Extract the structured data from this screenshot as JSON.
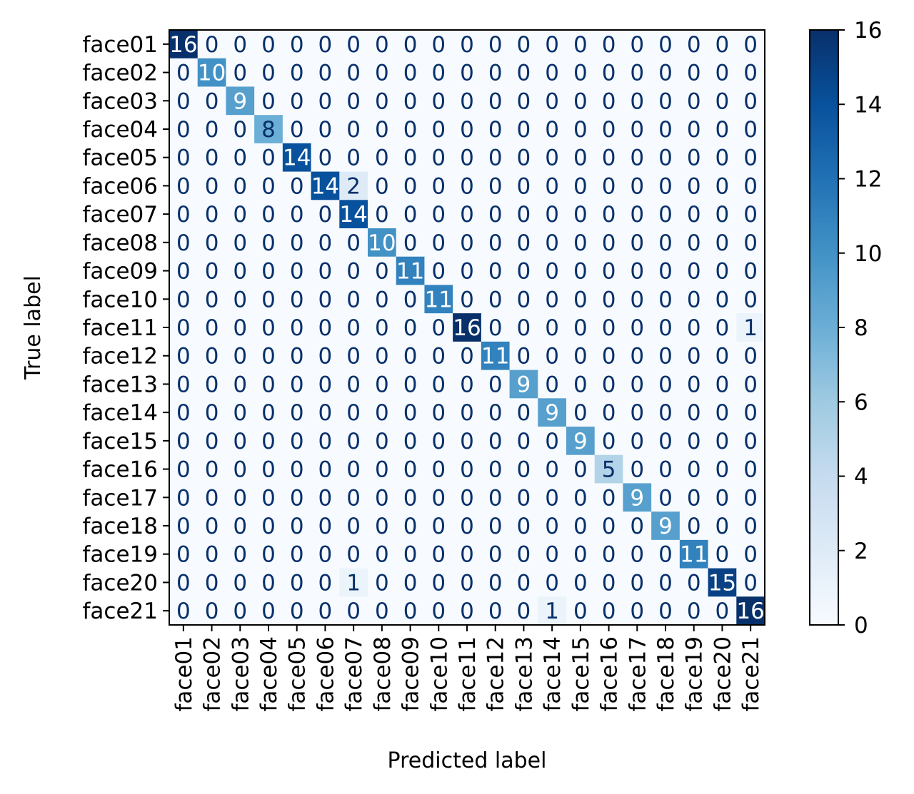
{
  "chart_data": {
    "type": "heatmap",
    "title": "",
    "xlabel": "Predicted label",
    "ylabel": "True label",
    "colormap": "Blues",
    "color_low": "#f7fbff",
    "color_high": "#08306b",
    "text_color_light": "#ffffff",
    "text_color_dark": "#08306b",
    "x_categories": [
      "face01",
      "face02",
      "face03",
      "face04",
      "face05",
      "face06",
      "face07",
      "face08",
      "face09",
      "face10",
      "face11",
      "face12",
      "face13",
      "face14",
      "face15",
      "face16",
      "face17",
      "face18",
      "face19",
      "face20",
      "face21"
    ],
    "y_categories": [
      "face01",
      "face02",
      "face03",
      "face04",
      "face05",
      "face06",
      "face07",
      "face08",
      "face09",
      "face10",
      "face11",
      "face12",
      "face13",
      "face14",
      "face15",
      "face16",
      "face17",
      "face18",
      "face19",
      "face20",
      "face21"
    ],
    "matrix": [
      [
        16,
        0,
        0,
        0,
        0,
        0,
        0,
        0,
        0,
        0,
        0,
        0,
        0,
        0,
        0,
        0,
        0,
        0,
        0,
        0,
        0
      ],
      [
        0,
        10,
        0,
        0,
        0,
        0,
        0,
        0,
        0,
        0,
        0,
        0,
        0,
        0,
        0,
        0,
        0,
        0,
        0,
        0,
        0
      ],
      [
        0,
        0,
        9,
        0,
        0,
        0,
        0,
        0,
        0,
        0,
        0,
        0,
        0,
        0,
        0,
        0,
        0,
        0,
        0,
        0,
        0
      ],
      [
        0,
        0,
        0,
        8,
        0,
        0,
        0,
        0,
        0,
        0,
        0,
        0,
        0,
        0,
        0,
        0,
        0,
        0,
        0,
        0,
        0
      ],
      [
        0,
        0,
        0,
        0,
        14,
        0,
        0,
        0,
        0,
        0,
        0,
        0,
        0,
        0,
        0,
        0,
        0,
        0,
        0,
        0,
        0
      ],
      [
        0,
        0,
        0,
        0,
        0,
        14,
        2,
        0,
        0,
        0,
        0,
        0,
        0,
        0,
        0,
        0,
        0,
        0,
        0,
        0,
        0
      ],
      [
        0,
        0,
        0,
        0,
        0,
        0,
        14,
        0,
        0,
        0,
        0,
        0,
        0,
        0,
        0,
        0,
        0,
        0,
        0,
        0,
        0
      ],
      [
        0,
        0,
        0,
        0,
        0,
        0,
        0,
        10,
        0,
        0,
        0,
        0,
        0,
        0,
        0,
        0,
        0,
        0,
        0,
        0,
        0
      ],
      [
        0,
        0,
        0,
        0,
        0,
        0,
        0,
        0,
        11,
        0,
        0,
        0,
        0,
        0,
        0,
        0,
        0,
        0,
        0,
        0,
        0
      ],
      [
        0,
        0,
        0,
        0,
        0,
        0,
        0,
        0,
        0,
        11,
        0,
        0,
        0,
        0,
        0,
        0,
        0,
        0,
        0,
        0,
        0
      ],
      [
        0,
        0,
        0,
        0,
        0,
        0,
        0,
        0,
        0,
        0,
        16,
        0,
        0,
        0,
        0,
        0,
        0,
        0,
        0,
        0,
        1
      ],
      [
        0,
        0,
        0,
        0,
        0,
        0,
        0,
        0,
        0,
        0,
        0,
        11,
        0,
        0,
        0,
        0,
        0,
        0,
        0,
        0,
        0
      ],
      [
        0,
        0,
        0,
        0,
        0,
        0,
        0,
        0,
        0,
        0,
        0,
        0,
        9,
        0,
        0,
        0,
        0,
        0,
        0,
        0,
        0
      ],
      [
        0,
        0,
        0,
        0,
        0,
        0,
        0,
        0,
        0,
        0,
        0,
        0,
        0,
        9,
        0,
        0,
        0,
        0,
        0,
        0,
        0
      ],
      [
        0,
        0,
        0,
        0,
        0,
        0,
        0,
        0,
        0,
        0,
        0,
        0,
        0,
        0,
        9,
        0,
        0,
        0,
        0,
        0,
        0
      ],
      [
        0,
        0,
        0,
        0,
        0,
        0,
        0,
        0,
        0,
        0,
        0,
        0,
        0,
        0,
        0,
        5,
        0,
        0,
        0,
        0,
        0
      ],
      [
        0,
        0,
        0,
        0,
        0,
        0,
        0,
        0,
        0,
        0,
        0,
        0,
        0,
        0,
        0,
        0,
        9,
        0,
        0,
        0,
        0
      ],
      [
        0,
        0,
        0,
        0,
        0,
        0,
        0,
        0,
        0,
        0,
        0,
        0,
        0,
        0,
        0,
        0,
        0,
        9,
        0,
        0,
        0
      ],
      [
        0,
        0,
        0,
        0,
        0,
        0,
        0,
        0,
        0,
        0,
        0,
        0,
        0,
        0,
        0,
        0,
        0,
        0,
        11,
        0,
        0
      ],
      [
        0,
        0,
        0,
        0,
        0,
        0,
        1,
        0,
        0,
        0,
        0,
        0,
        0,
        0,
        0,
        0,
        0,
        0,
        0,
        15,
        0
      ],
      [
        0,
        0,
        0,
        0,
        0,
        0,
        0,
        0,
        0,
        0,
        0,
        0,
        0,
        1,
        0,
        0,
        0,
        0,
        0,
        0,
        16
      ]
    ],
    "vmin": 0,
    "vmax": 16,
    "colorbar_ticks": [
      0,
      2,
      4,
      6,
      8,
      10,
      12,
      14,
      16
    ]
  }
}
